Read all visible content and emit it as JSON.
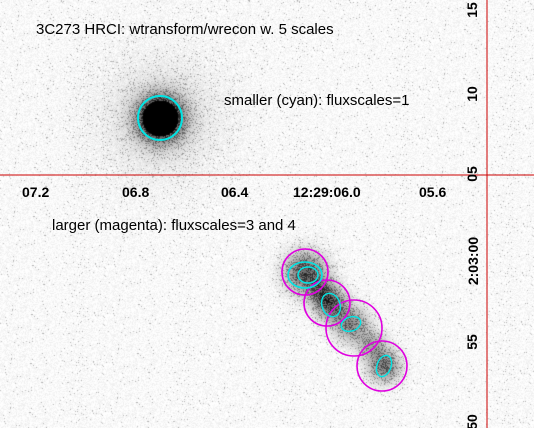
{
  "overlay": {
    "title": "3C273 HRCI: wtransform/wrecon w. 5 scales",
    "cyan_note": "smaller (cyan): fluxscales=1",
    "magenta_note": "larger (magenta): fluxscales=3 and 4"
  },
  "ra_ticks": [
    "07.2",
    "06.8",
    "06.4",
    "12:29:06.0",
    "05.6"
  ],
  "dec_ticks": [
    "15",
    "10",
    "05",
    "2:03:00",
    "55",
    "50"
  ],
  "colors": {
    "axis": "#cc0000",
    "cyan_regions": "#00e5e5",
    "magenta_regions": "#e000e0",
    "background": "#ffffff"
  },
  "icons": {
    "source": "quasar-core-icon",
    "jet": "jet-knots-icon"
  }
}
